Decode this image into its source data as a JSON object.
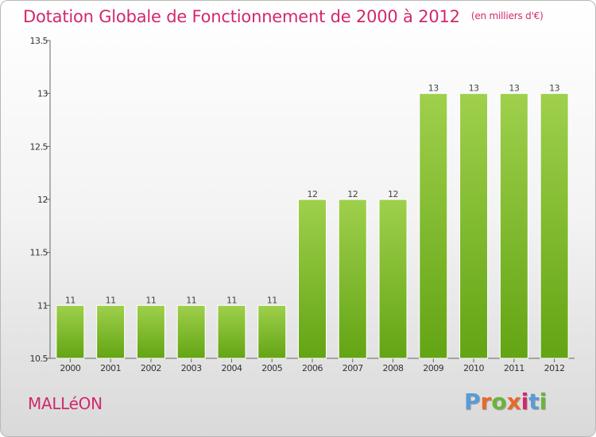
{
  "header": {
    "title": "Dotation Globale de Fonctionnement de 2000 à 2012",
    "unit": "(en milliers d'€)"
  },
  "footer": {
    "commune": "MALLéON",
    "brand": [
      "P",
      "r",
      "o",
      "x",
      "i",
      "t",
      "i"
    ],
    "brand_colors": [
      "#5a9bd4",
      "#e8692b",
      "#6bb43a",
      "#e8692b",
      "#d1286e",
      "#5a9bd4",
      "#6bb43a"
    ]
  },
  "chart_data": {
    "type": "bar",
    "title": "Dotation Globale de Fonctionnement de 2000 à 2012",
    "subtitle": "(en milliers d'€)",
    "xlabel": "",
    "ylabel": "",
    "categories": [
      "2000",
      "2001",
      "2002",
      "2003",
      "2004",
      "2005",
      "2006",
      "2007",
      "2008",
      "2009",
      "2010",
      "2011",
      "2012"
    ],
    "values": [
      11,
      11,
      11,
      11,
      11,
      11,
      12,
      12,
      12,
      13,
      13,
      13,
      13
    ],
    "data_labels": [
      "11",
      "11",
      "11",
      "11",
      "11",
      "11",
      "12",
      "12",
      "12",
      "13",
      "13",
      "13",
      "13"
    ],
    "ylim": [
      10.5,
      13.5
    ],
    "yticks": [
      10.5,
      11,
      11.5,
      12,
      12.5,
      13,
      13.5
    ],
    "ytick_labels": [
      "10.5",
      "11",
      "11.5",
      "12",
      "12.5",
      "13",
      "13.5"
    ],
    "grid": false,
    "colors": {
      "bar_light": "#9fd04c",
      "bar_dark": "#63a414",
      "title": "#d1286e"
    }
  }
}
